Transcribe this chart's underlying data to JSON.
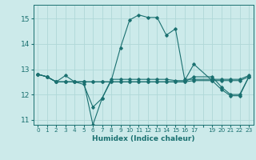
{
  "xlabel": "Humidex (Indice chaleur)",
  "background_color": "#cceaea",
  "grid_color": "#b0d8d8",
  "line_color": "#1a7070",
  "xlim": [
    -0.5,
    23.5
  ],
  "ylim": [
    10.8,
    15.55
  ],
  "yticks": [
    11,
    12,
    13,
    14,
    15
  ],
  "xtick_labels": [
    "0",
    "1",
    "2",
    "3",
    "4",
    "5",
    "6",
    "7",
    "8",
    "9",
    "10",
    "11",
    "12",
    "13",
    "14",
    "15",
    "16",
    "17",
    "",
    "19",
    "20",
    "21",
    "22",
    "23"
  ],
  "xtick_positions": [
    0,
    1,
    2,
    3,
    4,
    5,
    6,
    7,
    8,
    9,
    10,
    11,
    12,
    13,
    14,
    15,
    16,
    17,
    18,
    19,
    20,
    21,
    22,
    23
  ],
  "lines": [
    {
      "x": [
        0,
        1,
        2,
        3,
        4,
        5,
        6,
        7,
        8,
        9,
        10,
        11,
        12,
        13,
        14,
        15,
        16,
        17,
        19,
        20,
        21,
        22,
        23
      ],
      "y": [
        12.8,
        12.7,
        12.5,
        12.75,
        12.5,
        12.4,
        11.5,
        11.85,
        12.55,
        13.85,
        14.95,
        15.15,
        15.05,
        15.05,
        14.35,
        14.6,
        12.6,
        12.6,
        12.6,
        12.6,
        12.6,
        12.6,
        12.75
      ]
    },
    {
      "x": [
        0,
        1,
        2,
        3,
        4,
        5,
        6,
        7,
        8,
        9,
        10,
        11,
        12,
        13,
        14,
        15,
        16,
        17,
        19,
        20,
        21,
        22,
        23
      ],
      "y": [
        12.8,
        12.7,
        12.5,
        12.5,
        12.5,
        12.5,
        10.8,
        11.85,
        12.6,
        12.6,
        12.6,
        12.6,
        12.6,
        12.6,
        12.6,
        12.55,
        12.55,
        13.2,
        12.55,
        12.2,
        11.95,
        11.95,
        12.7
      ]
    },
    {
      "x": [
        0,
        1,
        2,
        3,
        4,
        5,
        6,
        7,
        8,
        9,
        10,
        11,
        12,
        13,
        14,
        15,
        16,
        17,
        19,
        20,
        21,
        22,
        23
      ],
      "y": [
        12.8,
        12.7,
        12.5,
        12.5,
        12.5,
        12.5,
        12.5,
        12.5,
        12.5,
        12.5,
        12.5,
        12.5,
        12.5,
        12.5,
        12.5,
        12.5,
        12.5,
        12.7,
        12.7,
        12.3,
        12.0,
        12.0,
        12.7
      ]
    },
    {
      "x": [
        0,
        1,
        2,
        3,
        4,
        5,
        6,
        7,
        8,
        9,
        10,
        11,
        12,
        13,
        14,
        15,
        16,
        17,
        19,
        20,
        21,
        22,
        23
      ],
      "y": [
        12.8,
        12.7,
        12.5,
        12.5,
        12.5,
        12.5,
        12.5,
        12.5,
        12.5,
        12.5,
        12.5,
        12.5,
        12.5,
        12.5,
        12.5,
        12.5,
        12.5,
        12.55,
        12.55,
        12.55,
        12.55,
        12.55,
        12.7
      ]
    }
  ]
}
